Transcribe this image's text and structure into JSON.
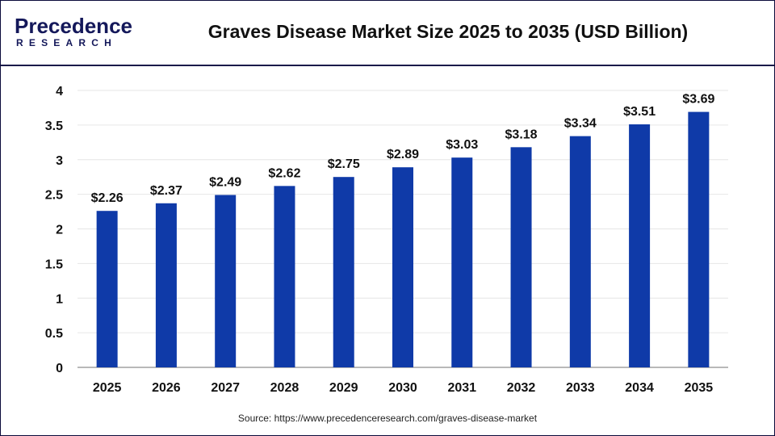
{
  "header": {
    "logo": {
      "main_text": "Precedence",
      "sub_text": "RESEARCH"
    },
    "title": "Graves Disease Market Size 2025 to 2035 (USD Billion)"
  },
  "footer": {
    "source": "Source: https://www.precedenceresearch.com/graves-disease-market"
  },
  "colors": {
    "bar": "#0f3aa8",
    "frame": "#0b0b3b",
    "grid": "#e6e6e6",
    "axis": "#b8b8b8",
    "text": "#111111",
    "logo_dark": "#14185a",
    "logo_accent": "#2a7de1"
  },
  "chart_data": {
    "type": "bar",
    "title": "Graves Disease Market Size 2025 to 2035 (USD Billion)",
    "xlabel": "",
    "ylabel": "",
    "categories": [
      "2025",
      "2026",
      "2027",
      "2028",
      "2029",
      "2030",
      "2031",
      "2032",
      "2033",
      "2034",
      "2035"
    ],
    "values": [
      2.26,
      2.37,
      2.49,
      2.62,
      2.75,
      2.89,
      3.03,
      3.18,
      3.34,
      3.51,
      3.69
    ],
    "value_labels": [
      "$2.26",
      "$2.37",
      "$2.49",
      "$2.62",
      "$2.75",
      "$2.89",
      "$3.03",
      "$3.18",
      "$3.34",
      "$3.51",
      "$3.69"
    ],
    "ylim": [
      0,
      4
    ],
    "yticks": [
      0,
      0.5,
      1,
      1.5,
      2,
      2.5,
      3,
      3.5,
      4
    ],
    "ytick_labels": [
      "0",
      "0.5",
      "1",
      "1.5",
      "2",
      "2.5",
      "3",
      "3.5",
      "4"
    ],
    "grid": true,
    "legend": null
  }
}
